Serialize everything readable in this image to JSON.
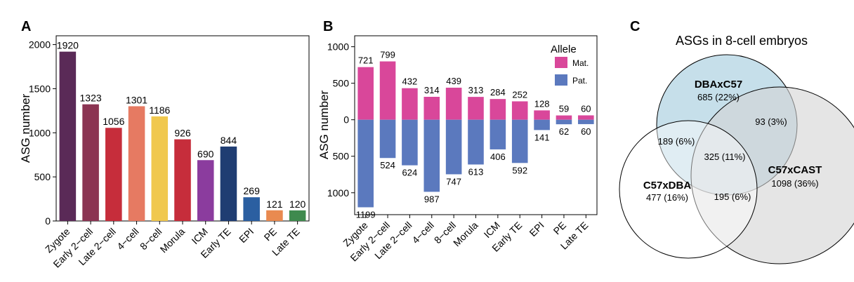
{
  "panels": {
    "a_label": "A",
    "b_label": "B",
    "c_label": "C"
  },
  "chart_data": [
    {
      "type": "bar",
      "panel": "A",
      "ylabel": "ASG number",
      "ylim": [
        0,
        2100
      ],
      "yticks": [
        0,
        500,
        1000,
        1500,
        2000
      ],
      "categories": [
        "Zygote",
        "Early 2−cell",
        "Late 2−cell",
        "4−cell",
        "8−cell",
        "Morula",
        "ICM",
        "Early TE",
        "EPI",
        "PE",
        "Late TE"
      ],
      "values": [
        1920,
        1323,
        1056,
        1301,
        1186,
        926,
        690,
        844,
        269,
        121,
        120
      ],
      "colors": [
        "#5a2a57",
        "#8b3452",
        "#c62d3b",
        "#e67a62",
        "#f0c84e",
        "#c62d3b",
        "#8b3c9e",
        "#1f3d72",
        "#2b5fa1",
        "#e98a50",
        "#3f8a4e"
      ]
    },
    {
      "type": "bar",
      "panel": "B",
      "ylabel": "ASG number",
      "ylim": [
        -1300,
        1150
      ],
      "yticks": [
        1000,
        500,
        0,
        500,
        1000
      ],
      "ytick_values": [
        1000,
        500,
        0,
        -500,
        -1000
      ],
      "categories": [
        "Zygote",
        "Early 2−cell",
        "Late 2−cell",
        "4−cell",
        "8−cell",
        "Morula",
        "ICM",
        "Early TE",
        "EPI",
        "PE",
        "Late TE"
      ],
      "legend_title": "Allele",
      "legend_position": "top-right",
      "series": [
        {
          "name": "Mat.",
          "color": "#d9479a",
          "values": [
            721,
            799,
            432,
            314,
            439,
            313,
            284,
            252,
            128,
            59,
            60
          ]
        },
        {
          "name": "Pat.",
          "color": "#5b79be",
          "values": [
            1199,
            524,
            624,
            987,
            747,
            613,
            406,
            592,
            141,
            62,
            60
          ]
        }
      ]
    }
  ],
  "venn": {
    "title": "ASGs in 8-cell embryos",
    "sets": [
      {
        "name": "DBAxC57",
        "count": "685 (22%)",
        "color": "#bcd9e6"
      },
      {
        "name": "C57xCAST",
        "count": "1098 (36%)",
        "color": "#d3d3d3"
      },
      {
        "name": "C57xDBA",
        "count": "477 (16%)",
        "color": "#ffffff"
      }
    ],
    "intersections": {
      "dba_cast": "93 (3%)",
      "dba_c57dba": "189 (6%)",
      "all_three": "325 (11%)",
      "cast_c57dba": "195 (6%)"
    }
  }
}
